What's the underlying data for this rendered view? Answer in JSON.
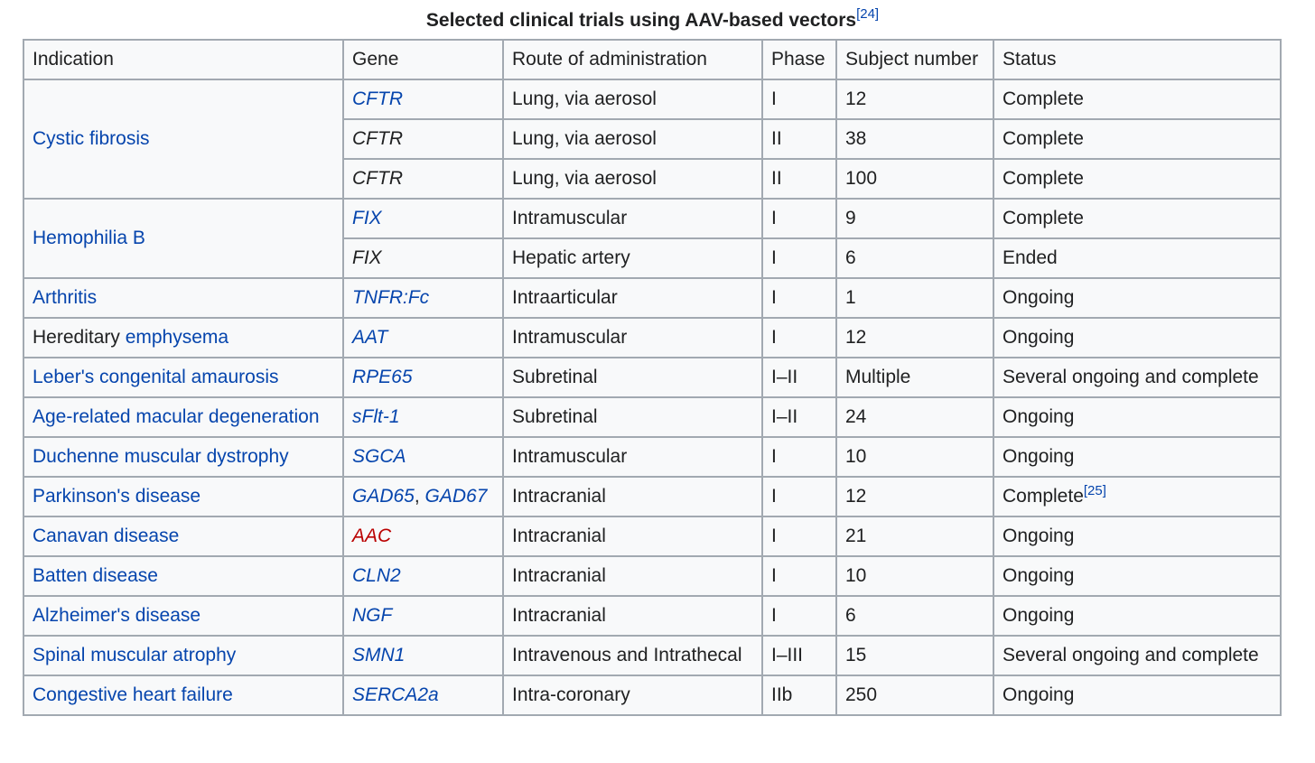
{
  "caption": {
    "title": "Selected clinical trials using AAV-based vectors",
    "ref": "[24]"
  },
  "headers": [
    "Indication",
    "Gene",
    "Route of administration",
    "Phase",
    "Subject number",
    "Status"
  ],
  "indications": {
    "cystic_fibrosis": "Cystic fibrosis",
    "hemophilia_b": "Hemophilia B",
    "arthritis": "Arthritis",
    "emphysema_prefix": "Hereditary ",
    "emphysema_link": "emphysema",
    "leber": "Leber's congenital amaurosis",
    "amd": "Age-related macular degeneration",
    "dmd": "Duchenne muscular dystrophy",
    "parkinsons": "Parkinson's disease",
    "canavan": "Canavan disease",
    "batten": "Batten disease",
    "alzheimers": "Alzheimer's disease",
    "sma": "Spinal muscular atrophy",
    "chf": "Congestive heart failure"
  },
  "rows": [
    {
      "gene": "CFTR",
      "route": "Lung, via aerosol",
      "phase": "I",
      "subjects": "12",
      "status": "Complete"
    },
    {
      "gene": "CFTR",
      "route": "Lung, via aerosol",
      "phase": "II",
      "subjects": "38",
      "status": "Complete"
    },
    {
      "gene": "CFTR",
      "route": "Lung, via aerosol",
      "phase": "II",
      "subjects": "100",
      "status": "Complete"
    },
    {
      "gene": "FIX",
      "route": "Intramuscular",
      "phase": "I",
      "subjects": "9",
      "status": "Complete"
    },
    {
      "gene": "FIX",
      "route": "Hepatic artery",
      "phase": "I",
      "subjects": "6",
      "status": "Ended"
    },
    {
      "gene": "TNFR:Fc",
      "route": "Intraarticular",
      "phase": "I",
      "subjects": "1",
      "status": "Ongoing"
    },
    {
      "gene": "AAT",
      "route": "Intramuscular",
      "phase": "I",
      "subjects": "12",
      "status": "Ongoing"
    },
    {
      "gene": "RPE65",
      "route": "Subretinal",
      "phase": "I–II",
      "subjects": "Multiple",
      "status": "Several ongoing and complete"
    },
    {
      "gene": "sFlt-1",
      "route": "Subretinal",
      "phase": "I–II",
      "subjects": "24",
      "status": "Ongoing"
    },
    {
      "gene": "SGCA",
      "route": "Intramuscular",
      "phase": "I",
      "subjects": "10",
      "status": "Ongoing"
    },
    {
      "gene_a": "GAD65",
      "gene_sep": ", ",
      "gene_b": "GAD67",
      "route": "Intracranial",
      "phase": "I",
      "subjects": "12",
      "status": "Complete",
      "status_ref": "[25]"
    },
    {
      "gene": "AAC",
      "route": "Intracranial",
      "phase": "I",
      "subjects": "21",
      "status": "Ongoing"
    },
    {
      "gene": "CLN2",
      "route": "Intracranial",
      "phase": "I",
      "subjects": "10",
      "status": "Ongoing"
    },
    {
      "gene": "NGF",
      "route": "Intracranial",
      "phase": "I",
      "subjects": "6",
      "status": "Ongoing"
    },
    {
      "gene": "SMN1",
      "route": "Intravenous and Intrathecal",
      "phase": "I–III",
      "subjects": "15",
      "status": "Several ongoing and complete"
    },
    {
      "gene": "SERCA2a",
      "route": "Intra-coronary",
      "phase": "IIb",
      "subjects": "250",
      "status": "Ongoing"
    }
  ]
}
